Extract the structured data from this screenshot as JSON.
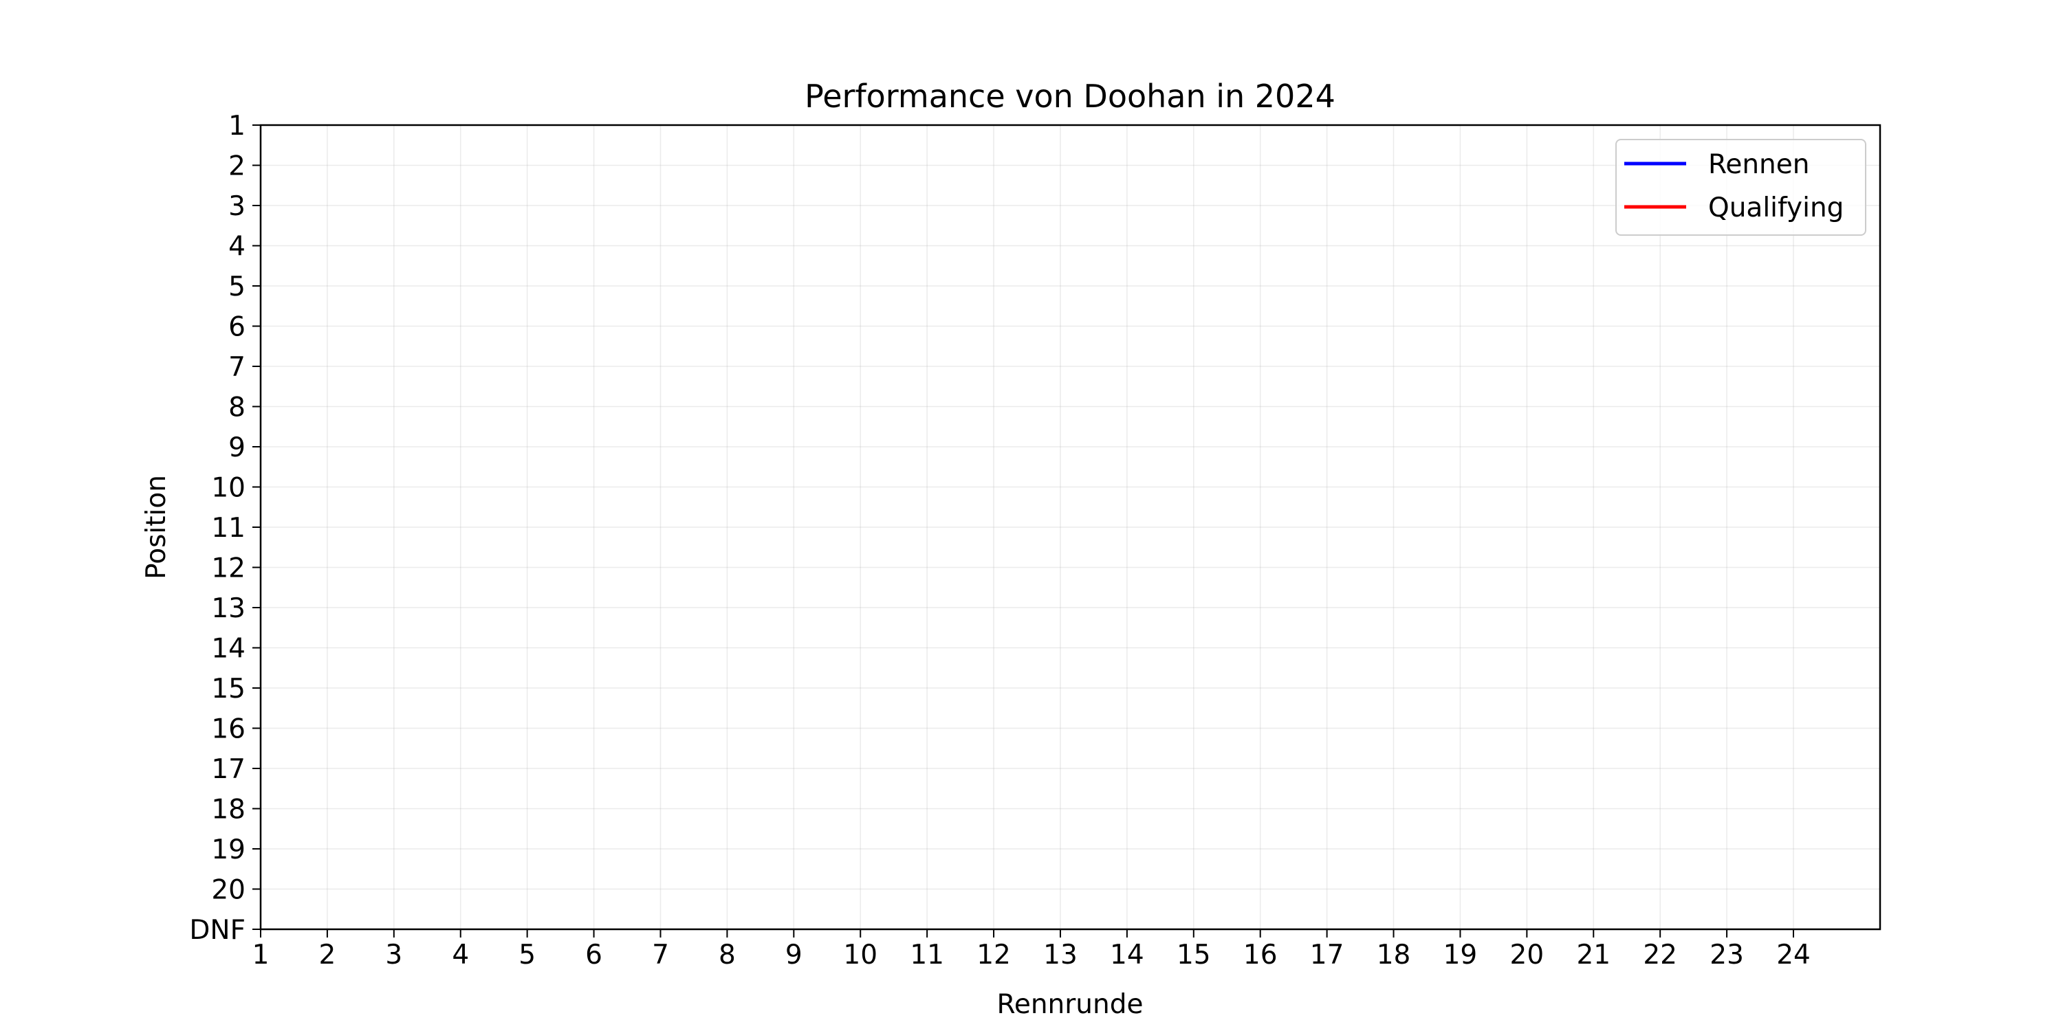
{
  "chart_data": {
    "type": "line",
    "title": "Performance von Doohan in 2024",
    "xlabel": "Rennrunde",
    "ylabel": "Position",
    "x_ticks": [
      "1",
      "2",
      "3",
      "4",
      "5",
      "6",
      "7",
      "8",
      "9",
      "10",
      "11",
      "12",
      "13",
      "14",
      "15",
      "16",
      "17",
      "18",
      "19",
      "20",
      "21",
      "22",
      "23",
      "24"
    ],
    "xlim": [
      1,
      25.3
    ],
    "y_ticks": [
      "1",
      "2",
      "3",
      "4",
      "5",
      "6",
      "7",
      "8",
      "9",
      "10",
      "11",
      "12",
      "13",
      "14",
      "15",
      "16",
      "17",
      "18",
      "19",
      "20",
      "DNF"
    ],
    "ylim": [
      1,
      21
    ],
    "y_inverted": true,
    "grid": true,
    "legend_position": "top-right",
    "series": [
      {
        "name": "Rennen",
        "color": "#0000ff",
        "x": [],
        "y": []
      },
      {
        "name": "Qualifying",
        "color": "#ff0000",
        "x": [],
        "y": []
      }
    ]
  }
}
